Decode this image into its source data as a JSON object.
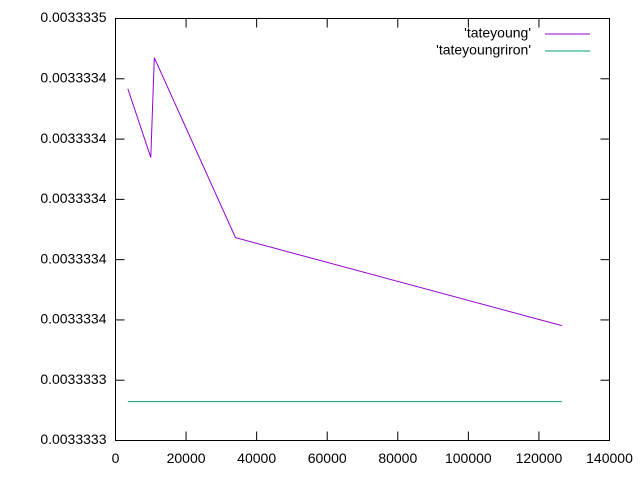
{
  "chart_data": {
    "type": "line",
    "x": [
      3500,
      10000,
      11000,
      34000,
      126500
    ],
    "series": [
      {
        "name": "'tateyoung'",
        "color": "#9400d3",
        "values": [
          0.0033334267,
          0.0033334039,
          0.003333437,
          0.0033333773,
          0.0033333481
        ]
      },
      {
        "name": "'tateyoungriron'",
        "color": "#009e73",
        "values": [
          0.0033333229,
          0.0033333229,
          0.0033333229,
          0.0033333229,
          0.0033333229
        ]
      }
    ],
    "xlim": [
      0,
      140000
    ],
    "xticks": [
      0,
      20000,
      40000,
      60000,
      80000,
      100000,
      120000,
      140000
    ],
    "ylim": [
      0.00333331,
      0.00333345
    ],
    "yticks": [
      {
        "value": 0.00333331,
        "label": "0.0033333"
      },
      {
        "value": 0.00333333,
        "label": "0.0033333"
      },
      {
        "value": 0.00333335,
        "label": "0.0033334"
      },
      {
        "value": 0.00333337,
        "label": "0.0033334"
      },
      {
        "value": 0.00333339,
        "label": "0.0033334"
      },
      {
        "value": 0.00333341,
        "label": "0.0033334"
      },
      {
        "value": 0.00333343,
        "label": "0.0033334"
      },
      {
        "value": 0.00333345,
        "label": "0.0033335"
      }
    ],
    "legend": "top-right",
    "grid": false
  }
}
